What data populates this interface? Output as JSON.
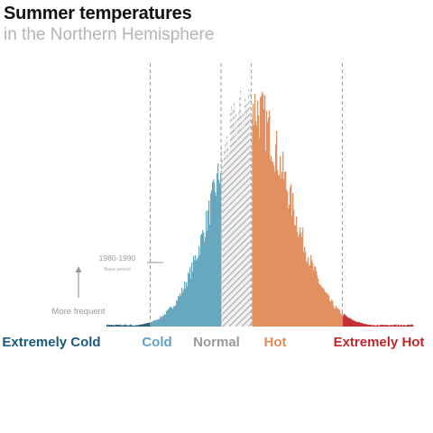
{
  "chart_data": {
    "type": "bar",
    "title": "Summer temperatures",
    "subtitle": "in the Northern Hemisphere",
    "xlabel": "",
    "ylabel": "",
    "grid": false,
    "legend": "none",
    "x_range": [
      -4.3,
      4.8
    ],
    "y_range": [
      0,
      1.0
    ],
    "category_boundaries": [
      -3.0,
      -0.9,
      0,
      2.7
    ],
    "categories": [
      {
        "label": "Extremely Cold",
        "color": "#1a5a7a",
        "range": [
          -4.3,
          -3.0
        ]
      },
      {
        "label": "Cold",
        "color": "#5fa3bb",
        "range": [
          -3.0,
          -0.9
        ]
      },
      {
        "label": "Normal",
        "color": "#9a9a9a",
        "range": [
          -0.9,
          0.0
        ]
      },
      {
        "label": "Hot",
        "color": "#e08a58",
        "range": [
          0.0,
          2.7
        ]
      },
      {
        "label": "Extremely Hot",
        "color": "#c0272d",
        "range": [
          2.7,
          4.8
        ]
      }
    ],
    "annotations": {
      "base_period": "1980-1990",
      "base_period_sub": "Base period",
      "more_frequent": "More frequent"
    },
    "distribution": {
      "mu": -0.05,
      "sigma_left": 1.05,
      "sigma_right": 1.15,
      "peak": 0.98
    }
  }
}
